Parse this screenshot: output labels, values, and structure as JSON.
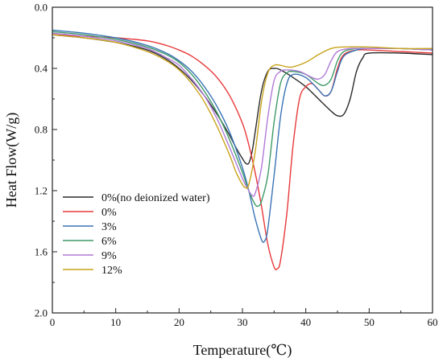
{
  "chart_data": {
    "type": "line",
    "xlabel": "Temperature(℃)",
    "ylabel": "Heat Flow(W/g)",
    "xlim": [
      0,
      60
    ],
    "ylim": [
      0.0,
      2.0
    ],
    "y_inverted": true,
    "x_ticks": [
      "0",
      "10",
      "20",
      "30",
      "40",
      "50",
      "60"
    ],
    "y_ticks": [
      "0.0",
      "0.4",
      "0.8",
      "1.2",
      "1.6",
      "2.0"
    ],
    "grid": false,
    "legend_position": "bottom-left",
    "series": [
      {
        "name": "0%(no deionized water)",
        "color": "#2b2b2b",
        "points": [
          [
            0,
            0.18
          ],
          [
            5,
            0.2
          ],
          [
            10,
            0.23
          ],
          [
            15,
            0.28
          ],
          [
            18,
            0.34
          ],
          [
            20,
            0.4
          ],
          [
            22,
            0.48
          ],
          [
            24,
            0.58
          ],
          [
            26,
            0.7
          ],
          [
            28,
            0.84
          ],
          [
            29,
            0.92
          ],
          [
            30,
            0.99
          ],
          [
            30.5,
            1.02
          ],
          [
            31,
            1.02
          ],
          [
            31.5,
            0.95
          ],
          [
            32,
            0.82
          ],
          [
            33,
            0.55
          ],
          [
            34,
            0.42
          ],
          [
            35,
            0.4
          ],
          [
            36,
            0.41
          ],
          [
            38,
            0.46
          ],
          [
            40,
            0.52
          ],
          [
            42,
            0.6
          ],
          [
            44,
            0.68
          ],
          [
            45,
            0.71
          ],
          [
            46,
            0.7
          ],
          [
            47,
            0.6
          ],
          [
            48,
            0.42
          ],
          [
            49,
            0.33
          ],
          [
            50,
            0.3
          ],
          [
            55,
            0.3
          ],
          [
            60,
            0.31
          ]
        ]
      },
      {
        "name": "0%",
        "color": "#e8393a",
        "points": [
          [
            0,
            0.18
          ],
          [
            5,
            0.19
          ],
          [
            10,
            0.2
          ],
          [
            15,
            0.22
          ],
          [
            18,
            0.25
          ],
          [
            20,
            0.28
          ],
          [
            22,
            0.32
          ],
          [
            24,
            0.38
          ],
          [
            26,
            0.46
          ],
          [
            28,
            0.58
          ],
          [
            30,
            0.76
          ],
          [
            31,
            0.9
          ],
          [
            32,
            1.08
          ],
          [
            33,
            1.3
          ],
          [
            34,
            1.55
          ],
          [
            35,
            1.7
          ],
          [
            35.5,
            1.71
          ],
          [
            36,
            1.66
          ],
          [
            37,
            1.35
          ],
          [
            38,
            0.9
          ],
          [
            39,
            0.6
          ],
          [
            40,
            0.52
          ],
          [
            41,
            0.5
          ],
          [
            42,
            0.54
          ],
          [
            43,
            0.58
          ],
          [
            44,
            0.55
          ],
          [
            45,
            0.4
          ],
          [
            46,
            0.31
          ],
          [
            48,
            0.28
          ],
          [
            50,
            0.28
          ],
          [
            55,
            0.29
          ],
          [
            60,
            0.3
          ]
        ]
      },
      {
        "name": "3%",
        "color": "#3a74b6",
        "points": [
          [
            0,
            0.15
          ],
          [
            5,
            0.17
          ],
          [
            10,
            0.2
          ],
          [
            15,
            0.25
          ],
          [
            18,
            0.3
          ],
          [
            20,
            0.35
          ],
          [
            22,
            0.42
          ],
          [
            24,
            0.52
          ],
          [
            26,
            0.65
          ],
          [
            28,
            0.82
          ],
          [
            30,
            1.05
          ],
          [
            31,
            1.2
          ],
          [
            32,
            1.38
          ],
          [
            33,
            1.52
          ],
          [
            33.5,
            1.53
          ],
          [
            34,
            1.45
          ],
          [
            35,
            1.1
          ],
          [
            36,
            0.72
          ],
          [
            37,
            0.5
          ],
          [
            38,
            0.44
          ],
          [
            40,
            0.46
          ],
          [
            42,
            0.54
          ],
          [
            43,
            0.58
          ],
          [
            44,
            0.55
          ],
          [
            45,
            0.42
          ],
          [
            46,
            0.32
          ],
          [
            48,
            0.28
          ],
          [
            50,
            0.27
          ],
          [
            55,
            0.27
          ],
          [
            60,
            0.28
          ]
        ]
      },
      {
        "name": "6%",
        "color": "#3f9a68",
        "points": [
          [
            0,
            0.16
          ],
          [
            5,
            0.18
          ],
          [
            10,
            0.21
          ],
          [
            15,
            0.26
          ],
          [
            18,
            0.31
          ],
          [
            20,
            0.36
          ],
          [
            22,
            0.44
          ],
          [
            24,
            0.55
          ],
          [
            26,
            0.69
          ],
          [
            28,
            0.87
          ],
          [
            30,
            1.08
          ],
          [
            31,
            1.2
          ],
          [
            32,
            1.29
          ],
          [
            32.5,
            1.3
          ],
          [
            33,
            1.27
          ],
          [
            34,
            1.1
          ],
          [
            35,
            0.75
          ],
          [
            36,
            0.5
          ],
          [
            37,
            0.43
          ],
          [
            38,
            0.42
          ],
          [
            40,
            0.44
          ],
          [
            42,
            0.5
          ],
          [
            43,
            0.51
          ],
          [
            44,
            0.47
          ],
          [
            45,
            0.35
          ],
          [
            46,
            0.29
          ],
          [
            48,
            0.27
          ],
          [
            50,
            0.27
          ],
          [
            55,
            0.27
          ],
          [
            60,
            0.28
          ]
        ]
      },
      {
        "name": "9%",
        "color": "#b07bd8",
        "points": [
          [
            0,
            0.17
          ],
          [
            5,
            0.19
          ],
          [
            10,
            0.22
          ],
          [
            15,
            0.27
          ],
          [
            18,
            0.33
          ],
          [
            20,
            0.38
          ],
          [
            22,
            0.47
          ],
          [
            24,
            0.58
          ],
          [
            26,
            0.73
          ],
          [
            28,
            0.92
          ],
          [
            30,
            1.12
          ],
          [
            31,
            1.2
          ],
          [
            31.5,
            1.23
          ],
          [
            32,
            1.22
          ],
          [
            33,
            1.05
          ],
          [
            34,
            0.72
          ],
          [
            35,
            0.48
          ],
          [
            36,
            0.42
          ],
          [
            37,
            0.41
          ],
          [
            39,
            0.42
          ],
          [
            41,
            0.46
          ],
          [
            42,
            0.47
          ],
          [
            43,
            0.44
          ],
          [
            44,
            0.35
          ],
          [
            45,
            0.29
          ],
          [
            47,
            0.27
          ],
          [
            50,
            0.27
          ],
          [
            55,
            0.27
          ],
          [
            60,
            0.28
          ]
        ]
      },
      {
        "name": "12%",
        "color": "#c9a31c",
        "points": [
          [
            0,
            0.18
          ],
          [
            5,
            0.2
          ],
          [
            10,
            0.23
          ],
          [
            15,
            0.29
          ],
          [
            18,
            0.35
          ],
          [
            20,
            0.41
          ],
          [
            22,
            0.5
          ],
          [
            24,
            0.62
          ],
          [
            26,
            0.78
          ],
          [
            28,
            0.97
          ],
          [
            29,
            1.08
          ],
          [
            30,
            1.16
          ],
          [
            30.5,
            1.18
          ],
          [
            31,
            1.16
          ],
          [
            32,
            0.95
          ],
          [
            33,
            0.62
          ],
          [
            34,
            0.43
          ],
          [
            35,
            0.38
          ],
          [
            36,
            0.38
          ],
          [
            37,
            0.39
          ],
          [
            38,
            0.39
          ],
          [
            40,
            0.36
          ],
          [
            42,
            0.31
          ],
          [
            44,
            0.27
          ],
          [
            46,
            0.26
          ],
          [
            50,
            0.26
          ],
          [
            55,
            0.27
          ],
          [
            60,
            0.27
          ]
        ]
      }
    ]
  }
}
